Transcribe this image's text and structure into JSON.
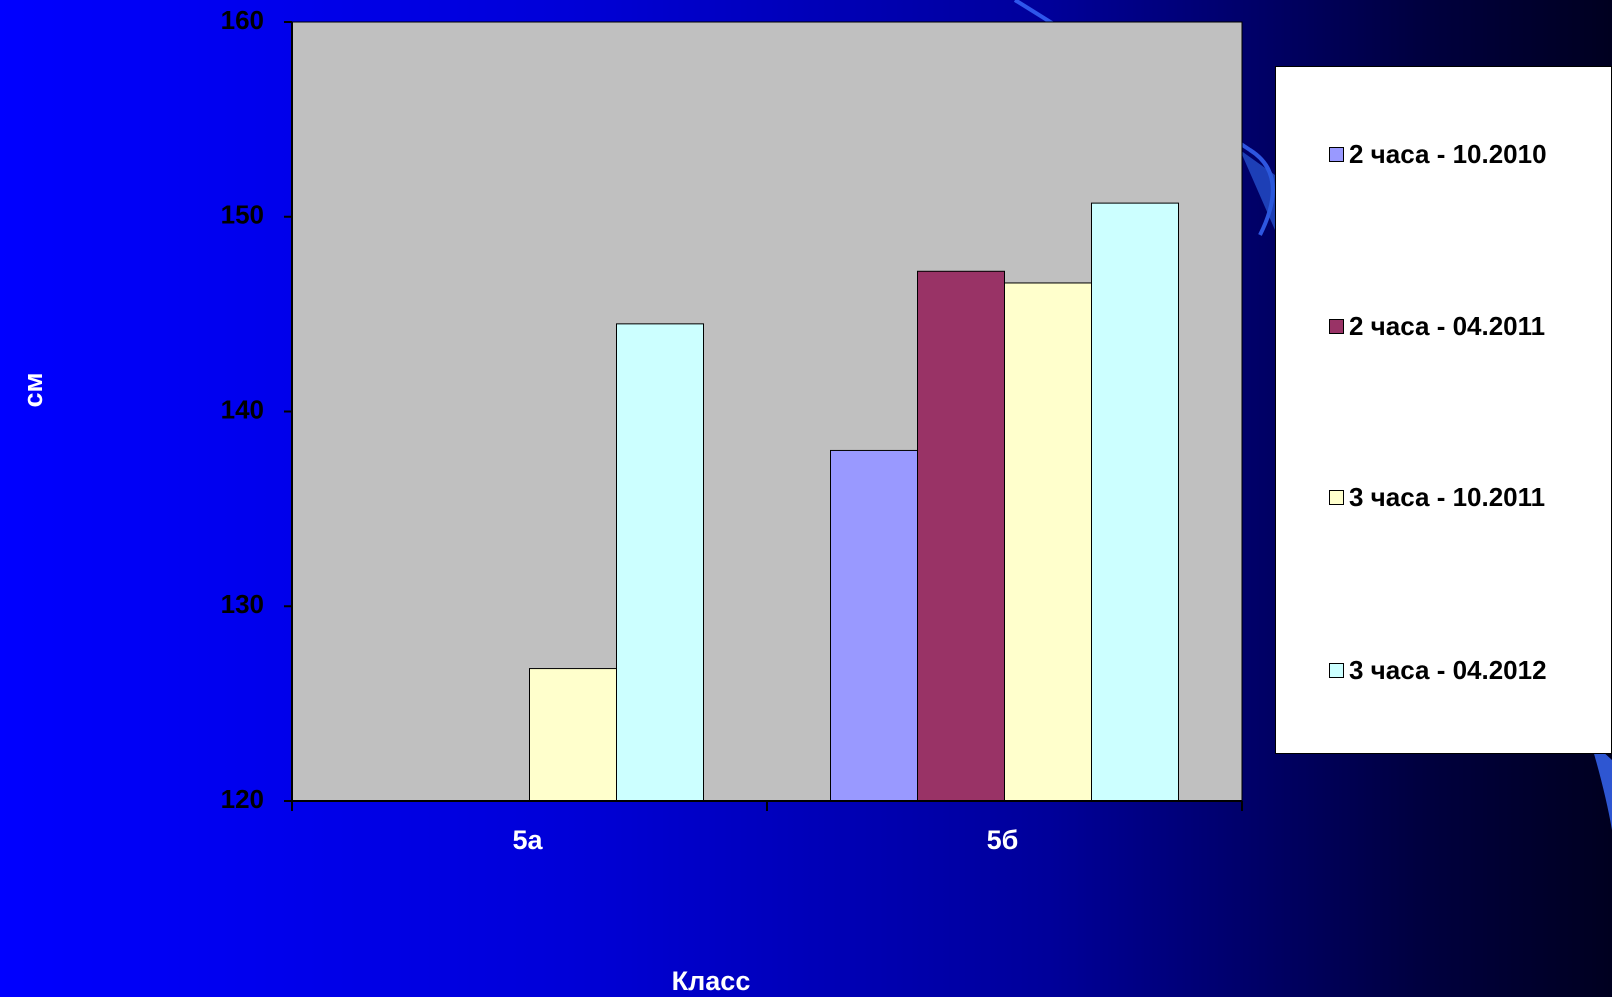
{
  "chart_data": {
    "type": "bar",
    "categories": [
      "5а",
      "5б"
    ],
    "series": [
      {
        "name": "2 часа - 10.2010",
        "color": "#9999ff",
        "values": [
          null,
          138
        ]
      },
      {
        "name": "2 часа - 04.2011",
        "color": "#993366",
        "values": [
          null,
          147.2
        ]
      },
      {
        "name": "3 часа - 10.2011",
        "color": "#ffffcc",
        "values": [
          126.8,
          146.6
        ]
      },
      {
        "name": "3 часа - 04.2012",
        "color": "#ccffff",
        "values": [
          144.5,
          150.7
        ]
      }
    ],
    "xlabel": "Класс",
    "ylabel": "см",
    "ylim": [
      120,
      160
    ],
    "yticks": [
      120,
      130,
      140,
      150,
      160
    ],
    "plot_background": "#c0c0c0",
    "grid": false,
    "legend_position": "right"
  }
}
